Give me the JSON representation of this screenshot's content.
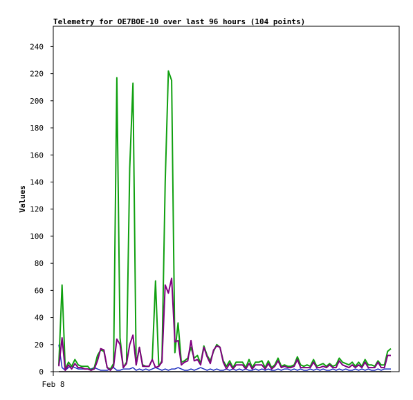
{
  "chart_data": {
    "type": "line",
    "title": "Telemetry for OE7BOE-10 over last 96 hours (104 points)",
    "ylabel": "Values",
    "xlabel": "",
    "ylim": [
      0,
      255
    ],
    "yticks": [
      0,
      20,
      40,
      60,
      80,
      100,
      120,
      140,
      160,
      180,
      200,
      220,
      240
    ],
    "xtick_labels": [
      "Feb 8"
    ],
    "grid": false,
    "series": [
      {
        "color": "#000000",
        "values": [
          0,
          0,
          0,
          0,
          0,
          0,
          0,
          0,
          0,
          0,
          0,
          0,
          0,
          0,
          0,
          0,
          0,
          0,
          0,
          0,
          0,
          0,
          0,
          0,
          0,
          0,
          0,
          0,
          0,
          0,
          0,
          0,
          0,
          0,
          0,
          0,
          0,
          0,
          0,
          0,
          0,
          0,
          0,
          0,
          0,
          0,
          0,
          0,
          0,
          0,
          0,
          0,
          0,
          0,
          0,
          0,
          0,
          0,
          0,
          0,
          0,
          0,
          0,
          0,
          0,
          0,
          0,
          0,
          0,
          0,
          0,
          0,
          0,
          0,
          0,
          0,
          0,
          0,
          0,
          0,
          0,
          0,
          0,
          0,
          0,
          0,
          0,
          0,
          0,
          0,
          0,
          0,
          0,
          0,
          0,
          0,
          0,
          0,
          0,
          0,
          0,
          0,
          0,
          0
        ]
      },
      {
        "color": "#2030c0",
        "values": [
          20,
          3,
          1,
          3,
          4,
          3,
          2,
          2,
          2,
          2,
          2,
          3,
          2,
          1,
          1,
          1,
          2,
          3,
          1,
          1,
          2,
          2,
          2,
          3,
          1,
          2,
          1,
          2,
          1,
          2,
          3,
          2,
          1,
          2,
          1,
          2,
          2,
          3,
          2,
          1,
          1,
          2,
          1,
          2,
          3,
          2,
          1,
          2,
          1,
          2,
          1,
          1,
          2,
          1,
          2,
          1,
          2,
          1,
          2,
          1,
          1,
          2,
          1,
          2,
          1,
          2,
          1,
          1,
          2,
          1,
          2,
          2,
          1,
          2,
          1,
          2,
          1,
          1,
          2,
          1,
          2,
          1,
          2,
          1,
          1,
          2,
          1,
          2,
          1,
          2,
          1,
          1,
          2,
          1,
          2,
          1,
          2,
          1,
          1,
          2,
          1,
          2,
          2,
          2
        ]
      },
      {
        "color": "#10a010",
        "values": [
          5,
          64,
          2,
          7,
          4,
          9,
          5,
          4,
          4,
          4,
          1,
          3,
          12,
          16,
          15,
          3,
          2,
          6,
          217,
          25,
          3,
          7,
          150,
          213,
          5,
          18,
          5,
          4,
          4,
          9,
          67,
          4,
          8,
          140,
          222,
          215,
          14,
          36,
          7,
          8,
          10,
          18,
          10,
          12,
          6,
          19,
          12,
          8,
          15,
          20,
          18,
          8,
          4,
          8,
          3,
          7,
          7,
          7,
          3,
          9,
          3,
          7,
          7,
          8,
          3,
          8,
          3,
          5,
          10,
          4,
          5,
          4,
          4,
          5,
          11,
          5,
          4,
          5,
          4,
          9,
          4,
          5,
          6,
          4,
          6,
          4,
          5,
          10,
          7,
          6,
          5,
          7,
          4,
          7,
          4,
          9,
          5,
          5,
          4,
          8,
          5,
          5,
          15,
          17
        ]
      },
      {
        "color": "#800080",
        "values": [
          4,
          25,
          1,
          5,
          2,
          6,
          3,
          3,
          2,
          2,
          1,
          2,
          8,
          17,
          16,
          3,
          1,
          4,
          24,
          20,
          3,
          6,
          20,
          27,
          5,
          18,
          4,
          4,
          4,
          9,
          3,
          4,
          7,
          64,
          58,
          69,
          22,
          23,
          5,
          7,
          8,
          23,
          8,
          9,
          5,
          18,
          11,
          6,
          16,
          19,
          18,
          7,
          2,
          6,
          2,
          5,
          5,
          5,
          2,
          6,
          2,
          5,
          5,
          5,
          2,
          6,
          2,
          4,
          8,
          3,
          4,
          3,
          3,
          4,
          9,
          3,
          3,
          3,
          3,
          7,
          3,
          3,
          4,
          3,
          5,
          3,
          3,
          8,
          5,
          4,
          3,
          5,
          3,
          5,
          3,
          7,
          3,
          3,
          3,
          7,
          3,
          3,
          12,
          12
        ]
      }
    ]
  }
}
